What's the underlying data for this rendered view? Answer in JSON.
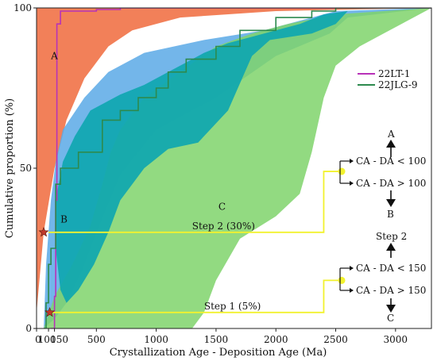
{
  "chart_data": {
    "type": "area",
    "xlabel": "Crystallization Age - Deposition Age (Ma)",
    "ylabel": "Cumulative    proportion (%)",
    "xlim": [
      0,
      3300
    ],
    "ylim": [
      0,
      100
    ],
    "x_ticks": [
      {
        "value": 0,
        "label": "0"
      },
      {
        "value": 100,
        "label": "100"
      },
      {
        "value": 150,
        "label": "150"
      },
      {
        "value": 500,
        "label": "500"
      },
      {
        "value": 1000,
        "label": "1000"
      },
      {
        "value": 1500,
        "label": "1500"
      },
      {
        "value": 2000,
        "label": "2000"
      },
      {
        "value": 2500,
        "label": "2500"
      },
      {
        "value": 3000,
        "label": "3000"
      }
    ],
    "y_ticks": [
      {
        "value": 0,
        "label": "0"
      },
      {
        "value": 50,
        "label": "50"
      },
      {
        "value": 100,
        "label": "100"
      }
    ],
    "fields": [
      {
        "label": "A",
        "color": "#f06a3c",
        "opacity": 0.85,
        "upper": [
          [
            0,
            100
          ],
          [
            3300,
            100
          ]
        ],
        "lower": [
          [
            0,
            5
          ],
          [
            60,
            30
          ],
          [
            150,
            50
          ],
          [
            250,
            65
          ],
          [
            400,
            78
          ],
          [
            600,
            88
          ],
          [
            800,
            93
          ],
          [
            1200,
            97
          ],
          [
            2000,
            99
          ],
          [
            3300,
            100
          ]
        ]
      },
      {
        "label": "B",
        "color": "#5aa9e6",
        "opacity": 0.85,
        "upper": [
          [
            60,
            0
          ],
          [
            80,
            20
          ],
          [
            120,
            40
          ],
          [
            160,
            52
          ],
          [
            220,
            62
          ],
          [
            400,
            72
          ],
          [
            600,
            80
          ],
          [
            900,
            86
          ],
          [
            1400,
            90
          ],
          [
            1900,
            93
          ],
          [
            2500,
            99
          ],
          [
            3300,
            100
          ]
        ],
        "lower": [
          [
            3300,
            100
          ],
          [
            2600,
            97
          ],
          [
            2450,
            92
          ],
          [
            2000,
            85
          ],
          [
            1500,
            72
          ],
          [
            1000,
            62
          ],
          [
            700,
            48
          ],
          [
            500,
            30
          ],
          [
            380,
            18
          ],
          [
            250,
            8
          ],
          [
            150,
            3
          ],
          [
            60,
            0
          ]
        ]
      },
      {
        "label": "C",
        "color": "#7fd36b",
        "opacity": 0.85,
        "upper": [
          [
            60,
            0
          ],
          [
            150,
            10
          ],
          [
            300,
            20
          ],
          [
            450,
            32
          ],
          [
            550,
            45
          ],
          [
            620,
            55
          ],
          [
            700,
            62
          ],
          [
            900,
            72
          ],
          [
            1200,
            80
          ],
          [
            1500,
            88
          ],
          [
            1800,
            92
          ],
          [
            2100,
            95
          ],
          [
            2500,
            98
          ],
          [
            3300,
            100
          ]
        ],
        "lower": [
          [
            3300,
            100
          ],
          [
            2900,
            92
          ],
          [
            2700,
            88
          ],
          [
            2500,
            82
          ],
          [
            2400,
            72
          ],
          [
            2300,
            55
          ],
          [
            2200,
            42
          ],
          [
            2000,
            35
          ],
          [
            1700,
            28
          ],
          [
            1500,
            15
          ],
          [
            1400,
            5
          ],
          [
            1300,
            0
          ]
        ]
      },
      {
        "label": "",
        "color": "#0fa7b0",
        "opacity": 0.92,
        "upper": [
          [
            160,
            40
          ],
          [
            220,
            52
          ],
          [
            320,
            60
          ],
          [
            450,
            68
          ],
          [
            550,
            70
          ],
          [
            700,
            73
          ],
          [
            900,
            76
          ],
          [
            1100,
            80
          ],
          [
            1250,
            83
          ],
          [
            1400,
            86
          ],
          [
            1600,
            89
          ],
          [
            1800,
            91
          ],
          [
            2000,
            93
          ],
          [
            2200,
            95
          ],
          [
            2400,
            98
          ],
          [
            2600,
            99
          ]
        ],
        "lower": [
          [
            2600,
            99
          ],
          [
            2500,
            95
          ],
          [
            2300,
            92
          ],
          [
            1950,
            90
          ],
          [
            1800,
            85
          ],
          [
            1600,
            68
          ],
          [
            1350,
            58
          ],
          [
            1100,
            56
          ],
          [
            900,
            50
          ],
          [
            700,
            40
          ],
          [
            600,
            30
          ],
          [
            480,
            20
          ],
          [
            350,
            12
          ],
          [
            250,
            8
          ],
          [
            200,
            12
          ],
          [
            160,
            25
          ]
        ]
      }
    ],
    "series": [
      {
        "name": "22LT-1",
        "color": "#b832b8",
        "points": [
          [
            120,
            0
          ],
          [
            150,
            10
          ],
          [
            160,
            40
          ],
          [
            170,
            95
          ],
          [
            200,
            99
          ],
          [
            300,
            99
          ],
          [
            500,
            99.5
          ],
          [
            700,
            100
          ],
          [
            3300,
            100
          ]
        ]
      },
      {
        "name": "22JLG-9",
        "color": "#2d8a4e",
        "points": [
          [
            60,
            0
          ],
          [
            80,
            8
          ],
          [
            100,
            20
          ],
          [
            120,
            25
          ],
          [
            160,
            45
          ],
          [
            200,
            50
          ],
          [
            350,
            55
          ],
          [
            550,
            65
          ],
          [
            700,
            68
          ],
          [
            850,
            72
          ],
          [
            1000,
            75
          ],
          [
            1100,
            80
          ],
          [
            1250,
            84
          ],
          [
            1500,
            88
          ],
          [
            1700,
            93
          ],
          [
            2000,
            97
          ],
          [
            2300,
            99
          ],
          [
            2500,
            100
          ],
          [
            3300,
            100
          ]
        ]
      }
    ],
    "step_lines": [
      {
        "label": "Step 1  (5%)",
        "y": 5,
        "x_end": 2400,
        "y_to": 15,
        "x_node": 2550,
        "text_pos": [
          1400,
          6
        ]
      },
      {
        "label": "Step 2  (30%)",
        "y": 30,
        "x_end": 2400,
        "y_to": 49,
        "x_node": 2550,
        "text_pos": [
          1300,
          31
        ]
      }
    ],
    "stars": [
      {
        "x": 110,
        "y": 5
      },
      {
        "x": 60,
        "y": 30
      }
    ],
    "field_labels": [
      {
        "text": "A",
        "x": 120,
        "y": 84
      },
      {
        "text": "B",
        "x": 200,
        "y": 33
      },
      {
        "text": "C",
        "x": 1520,
        "y": 37
      }
    ]
  },
  "legend": {
    "items": [
      {
        "name": "22LT-1",
        "color": "#b832b8"
      },
      {
        "name": "22JLG-9",
        "color": "#2d8a4e"
      }
    ]
  },
  "decision": {
    "upper": {
      "top_label": "A",
      "line1": "CA - DA < 100",
      "line2": "CA - DA > 100",
      "bottom_label": "B"
    },
    "middle": {
      "label": "Step 2"
    },
    "lower": {
      "line1": "CA - DA < 150",
      "line2": "CA - DA > 150",
      "bottom_label": "C"
    }
  },
  "colors": {
    "yellow": "#f2f22e",
    "star": "#c0392b"
  }
}
